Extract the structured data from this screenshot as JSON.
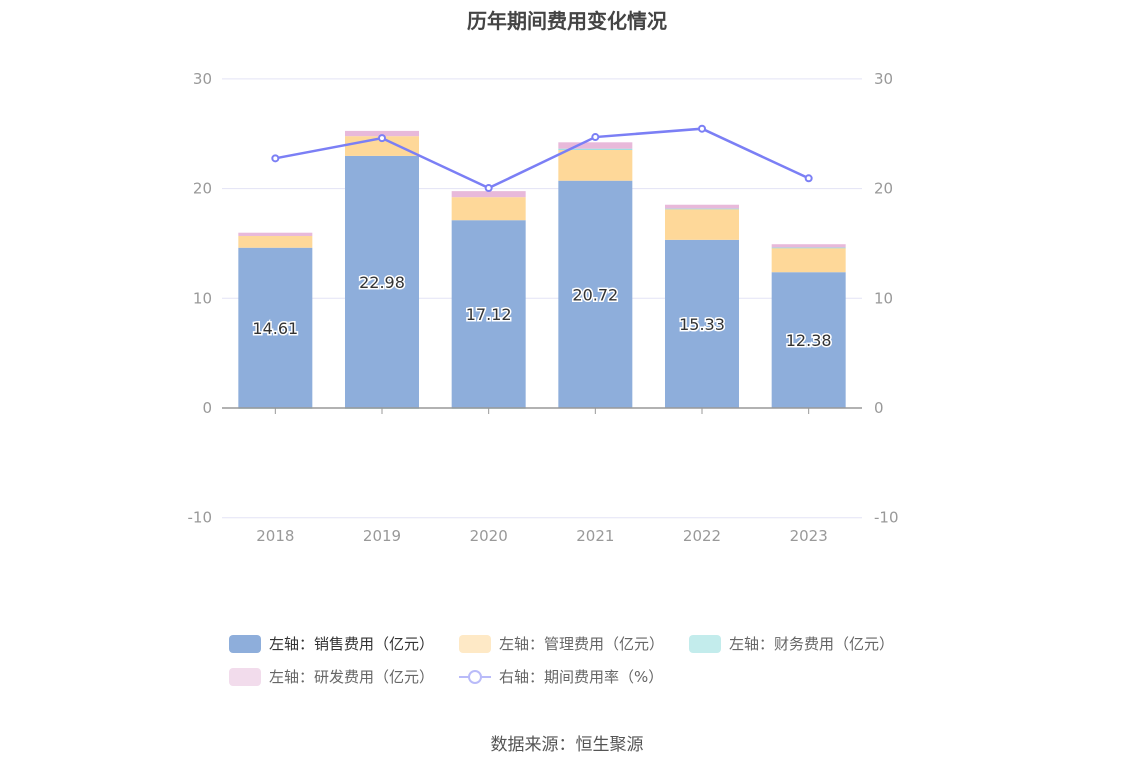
{
  "chart_data": {
    "type": "bar",
    "title": "历年期间费用变化情况",
    "categories": [
      "2018",
      "2019",
      "2020",
      "2021",
      "2022",
      "2023"
    ],
    "y_left": {
      "min": -10,
      "max": 30,
      "ticks": [
        -10,
        0,
        10,
        20,
        30
      ]
    },
    "y_right": {
      "min": -10,
      "max": 30,
      "ticks": [
        -10,
        0,
        10,
        20,
        30
      ]
    },
    "grid": true,
    "legend_position": "bottom",
    "series": [
      {
        "name": "左轴：销售费用（亿元）",
        "type": "bar",
        "axis": "left",
        "color": "#8eaedb",
        "values": [
          14.61,
          22.98,
          17.12,
          20.72,
          15.33,
          12.38
        ],
        "labels": [
          "14.61",
          "22.98",
          "17.12",
          "20.72",
          "15.33",
          "12.38"
        ]
      },
      {
        "name": "左轴：管理费用（亿元）",
        "type": "bar",
        "axis": "left",
        "color": "#fed899",
        "values": [
          1.07,
          1.8,
          2.1,
          2.8,
          2.8,
          2.2
        ]
      },
      {
        "name": "左轴：财务费用（亿元）",
        "type": "bar",
        "axis": "left",
        "color": "#9fdfe0",
        "values": [
          -0.05,
          -0.08,
          -0.05,
          0.12,
          0.05,
          0.05
        ]
      },
      {
        "name": "左轴：研发费用（亿元）",
        "type": "bar",
        "axis": "left",
        "color": "#e8b9da",
        "values": [
          0.3,
          0.48,
          0.55,
          0.58,
          0.35,
          0.3
        ]
      },
      {
        "name": "右轴：期间费用率（%）",
        "type": "line",
        "axis": "right",
        "color": "#7b7ff5",
        "values": [
          22.76,
          24.6,
          20.05,
          24.7,
          25.46,
          20.94
        ]
      }
    ]
  },
  "source": "数据来源：恒生聚源"
}
